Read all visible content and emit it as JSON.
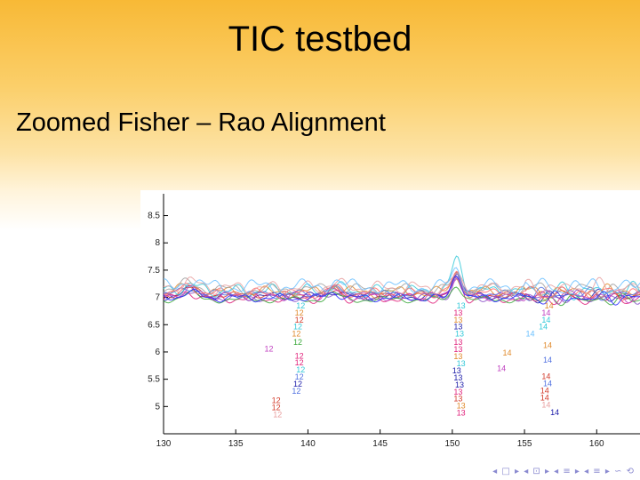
{
  "slide": {
    "title": "TIC testbed",
    "subtitle": "Zoomed Fisher – Rao Alignment",
    "nav_symbols": "◂ □ ▸ ◂ ⊡ ▸ ◂ ≡ ▸ ◂ ≡ ▸ ∽ ⟲"
  },
  "chart_data": {
    "type": "line",
    "title": "",
    "xlabel": "",
    "ylabel": "",
    "xlim": [
      130,
      163
    ],
    "ylim": [
      4.5,
      8.9
    ],
    "xticks": [
      130,
      135,
      140,
      145,
      150,
      155,
      160
    ],
    "yticks": [
      {
        "value": 8.5,
        "label": "8.5"
      },
      {
        "value": 8,
        "label": "8"
      },
      {
        "value": 7.5,
        "label": "7.5"
      },
      {
        "value": 7,
        "label": "7"
      },
      {
        "value": 6.5,
        "label": "6.5"
      },
      {
        "value": 6,
        "label": "6"
      },
      {
        "value": 5.5,
        "label": "5.5"
      },
      {
        "value": 5,
        "label": "5"
      }
    ],
    "grid": false,
    "series_colors": [
      "#1a1aa8",
      "#e0207a",
      "#d23a2a",
      "#32c8d8",
      "#e08a2c",
      "#8a50c8",
      "#38a838",
      "#c040c0",
      "#5070e0",
      "#a0a0a0",
      "#ff6a6a",
      "#2a2aff",
      "#e8a0a0",
      "#6ac0ff"
    ],
    "series_params": [
      {
        "base": 7.02,
        "amp": 0.05,
        "phase": 0.3,
        "freq": 1.05,
        "peak": 0.48
      },
      {
        "base": 6.98,
        "amp": 0.06,
        "phase": 1.1,
        "freq": 1.1,
        "peak": 0.42
      },
      {
        "base": 7.05,
        "amp": 0.04,
        "phase": 2.0,
        "freq": 0.95,
        "peak": 0.38
      },
      {
        "base": 7.12,
        "amp": 0.08,
        "phase": 0.7,
        "freq": 1.2,
        "peak": 0.6
      },
      {
        "base": 7.1,
        "amp": 0.07,
        "phase": 2.6,
        "freq": 1.0,
        "peak": 0.3
      },
      {
        "base": 7.0,
        "amp": 0.05,
        "phase": 1.6,
        "freq": 1.15,
        "peak": 0.35
      },
      {
        "base": 6.96,
        "amp": 0.04,
        "phase": 3.1,
        "freq": 0.9,
        "peak": 0.28
      },
      {
        "base": 7.03,
        "amp": 0.06,
        "phase": 0.1,
        "freq": 1.25,
        "peak": 0.4
      },
      {
        "base": 7.06,
        "amp": 0.05,
        "phase": 2.3,
        "freq": 1.05,
        "peak": 0.33
      },
      {
        "base": 7.15,
        "amp": 0.07,
        "phase": 1.4,
        "freq": 0.98,
        "peak": 0.25
      },
      {
        "base": 7.08,
        "amp": 0.06,
        "phase": 0.9,
        "freq": 1.12,
        "peak": 0.36
      },
      {
        "base": 6.99,
        "amp": 0.05,
        "phase": 2.8,
        "freq": 1.08,
        "peak": 0.45
      },
      {
        "base": 7.18,
        "amp": 0.08,
        "phase": 0.5,
        "freq": 1.18,
        "peak": 0.22
      },
      {
        "base": 7.2,
        "amp": 0.09,
        "phase": 1.9,
        "freq": 0.92,
        "peak": 0.3
      }
    ],
    "marker_groups": [
      {
        "name": "12",
        "points": [
          {
            "x": 139.5,
            "y": 6.85,
            "c": "#32c8d8"
          },
          {
            "x": 139.4,
            "y": 6.72,
            "c": "#e08a2c"
          },
          {
            "x": 139.4,
            "y": 6.59,
            "c": "#d23a2a"
          },
          {
            "x": 139.3,
            "y": 6.46,
            "c": "#32c8d8"
          },
          {
            "x": 139.2,
            "y": 6.33,
            "c": "#e08a2c"
          },
          {
            "x": 139.3,
            "y": 6.18,
            "c": "#38a838"
          },
          {
            "x": 137.3,
            "y": 6.06,
            "c": "#c040c0"
          },
          {
            "x": 139.4,
            "y": 5.93,
            "c": "#e0207a"
          },
          {
            "x": 139.4,
            "y": 5.8,
            "c": "#e0207a"
          },
          {
            "x": 139.5,
            "y": 5.67,
            "c": "#32c8d8"
          },
          {
            "x": 139.4,
            "y": 5.54,
            "c": "#5070e0"
          },
          {
            "x": 139.3,
            "y": 5.41,
            "c": "#1a1aa8"
          },
          {
            "x": 139.2,
            "y": 5.28,
            "c": "#5070e0"
          },
          {
            "x": 137.8,
            "y": 5.11,
            "c": "#d23a2a"
          },
          {
            "x": 137.8,
            "y": 4.98,
            "c": "#d23a2a"
          },
          {
            "x": 137.9,
            "y": 4.85,
            "c": "#e8a0a0"
          }
        ]
      },
      {
        "name": "13",
        "points": [
          {
            "x": 150.6,
            "y": 6.85,
            "c": "#32c8d8"
          },
          {
            "x": 150.4,
            "y": 6.72,
            "c": "#e0207a"
          },
          {
            "x": 150.4,
            "y": 6.59,
            "c": "#e08a2c"
          },
          {
            "x": 150.4,
            "y": 6.46,
            "c": "#1a1aa8"
          },
          {
            "x": 150.5,
            "y": 6.33,
            "c": "#32c8d8"
          },
          {
            "x": 150.4,
            "y": 6.18,
            "c": "#e0207a"
          },
          {
            "x": 150.4,
            "y": 6.05,
            "c": "#e0207a"
          },
          {
            "x": 150.4,
            "y": 5.92,
            "c": "#e08a2c"
          },
          {
            "x": 150.6,
            "y": 5.79,
            "c": "#32c8d8"
          },
          {
            "x": 150.3,
            "y": 5.66,
            "c": "#1a1aa8"
          },
          {
            "x": 150.4,
            "y": 5.53,
            "c": "#1a1aa8"
          },
          {
            "x": 150.5,
            "y": 5.4,
            "c": "#1a1aa8"
          },
          {
            "x": 150.4,
            "y": 5.27,
            "c": "#e0207a"
          },
          {
            "x": 150.4,
            "y": 5.14,
            "c": "#d23a2a"
          },
          {
            "x": 150.6,
            "y": 5.01,
            "c": "#e08a2c"
          },
          {
            "x": 150.6,
            "y": 4.88,
            "c": "#e0207a"
          }
        ]
      },
      {
        "name": "14",
        "points": [
          {
            "x": 156.7,
            "y": 6.85,
            "c": "#e08a2c"
          },
          {
            "x": 156.5,
            "y": 6.72,
            "c": "#c040c0"
          },
          {
            "x": 156.5,
            "y": 6.59,
            "c": "#32c8d8"
          },
          {
            "x": 156.3,
            "y": 6.46,
            "c": "#32c8d8"
          },
          {
            "x": 155.4,
            "y": 6.33,
            "c": "#6ac0ff"
          },
          {
            "x": 156.6,
            "y": 6.12,
            "c": "#e08a2c"
          },
          {
            "x": 153.8,
            "y": 5.98,
            "c": "#e08a2c"
          },
          {
            "x": 156.6,
            "y": 5.85,
            "c": "#5070e0"
          },
          {
            "x": 153.4,
            "y": 5.7,
            "c": "#c040c0"
          },
          {
            "x": 156.5,
            "y": 5.55,
            "c": "#d23a2a"
          },
          {
            "x": 156.6,
            "y": 5.42,
            "c": "#5070e0"
          },
          {
            "x": 156.4,
            "y": 5.29,
            "c": "#d23a2a"
          },
          {
            "x": 156.4,
            "y": 5.16,
            "c": "#d23a2a"
          },
          {
            "x": 156.5,
            "y": 5.03,
            "c": "#e8a0a0"
          },
          {
            "x": 157.1,
            "y": 4.89,
            "c": "#1a1aa8"
          }
        ]
      }
    ]
  }
}
